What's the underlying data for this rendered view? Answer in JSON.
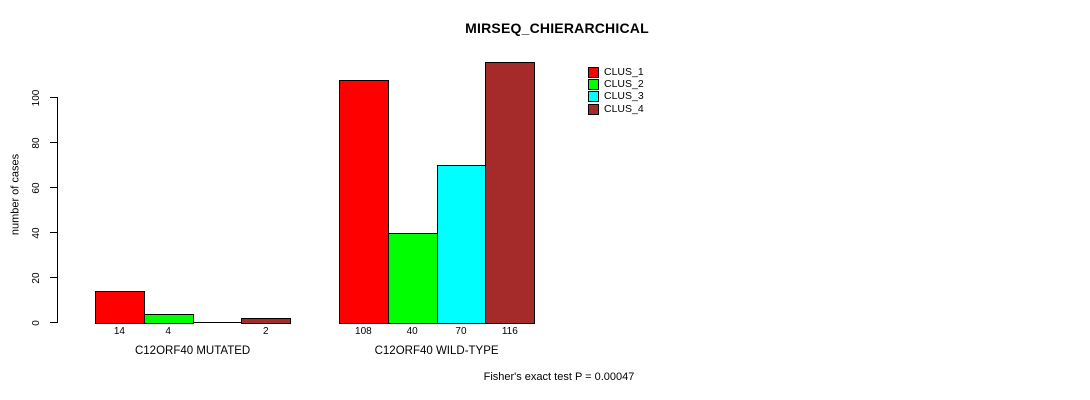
{
  "chart_data": {
    "type": "bar",
    "title": "MIRSEQ_CHIERARCHICAL",
    "ylabel": "number of cases",
    "ylim": [
      0,
      100
    ],
    "yticks": [
      0,
      20,
      40,
      60,
      80,
      100
    ],
    "grid": false,
    "legend_position": "top-right",
    "legend": [
      {
        "label": "CLUS_1",
        "color": "#FF0000"
      },
      {
        "label": "CLUS_2",
        "color": "#00FF00"
      },
      {
        "label": "CLUS_3",
        "color": "#00FFFF"
      },
      {
        "label": "CLUS_4",
        "color": "#A52A2A"
      }
    ],
    "groups": [
      {
        "category": "C12ORF40 MUTATED",
        "values": [
          14,
          4,
          0,
          2
        ],
        "bar_labels": [
          "14",
          "4",
          "",
          "2"
        ]
      },
      {
        "category": "C12ORF40 WILD-TYPE",
        "values": [
          108,
          40,
          70,
          116
        ],
        "bar_labels": [
          "108",
          "40",
          "70",
          "116"
        ]
      }
    ],
    "footnote": "Fisher's exact test P = 0.00047"
  }
}
